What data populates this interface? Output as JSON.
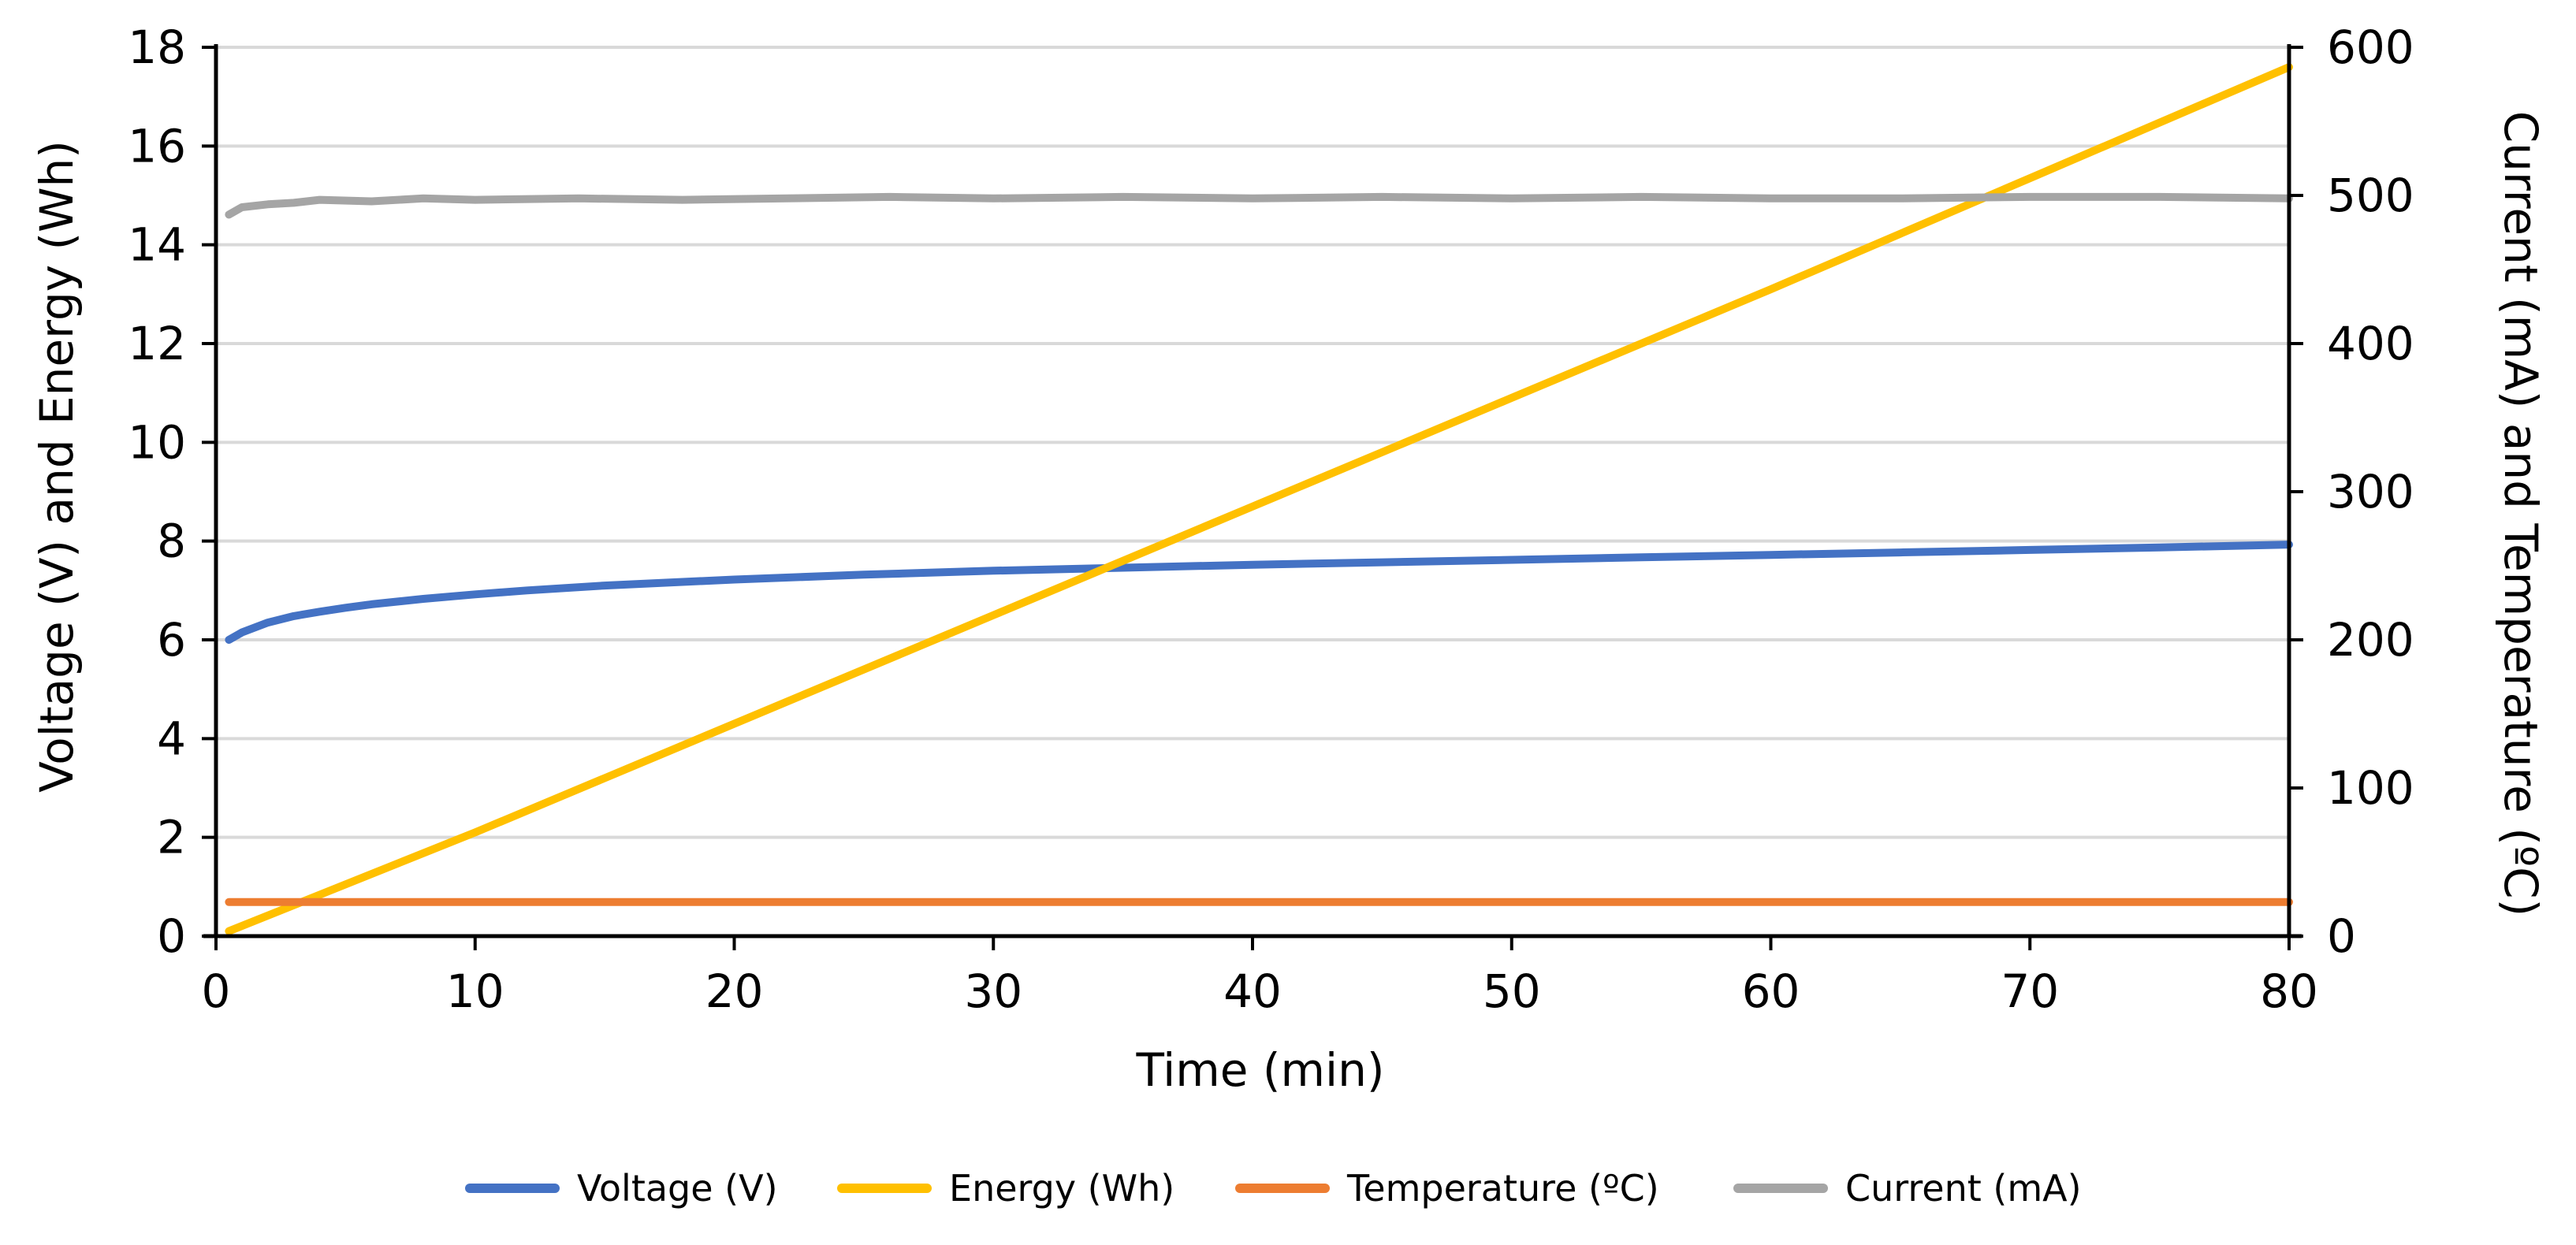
{
  "chart_data": {
    "type": "line",
    "title": "",
    "xlabel": "Time (min)",
    "ylabel_left": "Voltage (V) and Energy (Wh)",
    "ylabel_right": "Current (mA) and Temperature (ºC)",
    "xlim": [
      0,
      80
    ],
    "ylim_left": [
      0,
      18
    ],
    "ylim_right": [
      0,
      600
    ],
    "x_ticks": [
      "0",
      "10",
      "20",
      "30",
      "40",
      "50",
      "60",
      "70",
      "80"
    ],
    "y_left_ticks": [
      "0",
      "2",
      "4",
      "6",
      "8",
      "10",
      "12",
      "14",
      "16",
      "18"
    ],
    "y_right_ticks": [
      "0",
      "100",
      "200",
      "300",
      "400",
      "500",
      "600"
    ],
    "grid": "horizontal",
    "legend_position": "bottom",
    "series": [
      {
        "name": "Voltage (V)",
        "axis": "left",
        "color": "#4472C4",
        "x": [
          0.5,
          1,
          2,
          3,
          4,
          5,
          6,
          8,
          10,
          12,
          15,
          20,
          25,
          30,
          35,
          40,
          45,
          50,
          55,
          60,
          65,
          70,
          75,
          80
        ],
        "values": [
          6.0,
          6.15,
          6.35,
          6.48,
          6.57,
          6.65,
          6.72,
          6.83,
          6.92,
          7.0,
          7.1,
          7.22,
          7.32,
          7.4,
          7.46,
          7.52,
          7.57,
          7.62,
          7.67,
          7.72,
          7.77,
          7.82,
          7.87,
          7.93
        ]
      },
      {
        "name": "Energy (Wh)",
        "axis": "left",
        "color": "#FFC000",
        "x": [
          0.5,
          10,
          20,
          30,
          40,
          50,
          60,
          70,
          80
        ],
        "values": [
          0.1,
          2.1,
          4.3,
          6.5,
          8.7,
          10.9,
          13.1,
          15.35,
          17.6
        ]
      },
      {
        "name": "Temperature (ºC)",
        "axis": "right",
        "color": "#ED7D31",
        "x": [
          0.5,
          80
        ],
        "values": [
          23,
          23
        ]
      },
      {
        "name": "Current (mA)",
        "axis": "right",
        "color": "#A5A5A5",
        "x": [
          0.5,
          1,
          2,
          3,
          4,
          6,
          8,
          10,
          14,
          18,
          22,
          26,
          30,
          35,
          40,
          45,
          50,
          55,
          60,
          65,
          70,
          75,
          80
        ],
        "values": [
          487,
          492,
          494,
          495,
          497,
          496,
          498,
          497,
          498,
          497,
          498,
          499,
          498,
          499,
          498,
          499,
          498,
          499,
          498,
          498,
          499,
          499,
          498
        ]
      }
    ]
  }
}
